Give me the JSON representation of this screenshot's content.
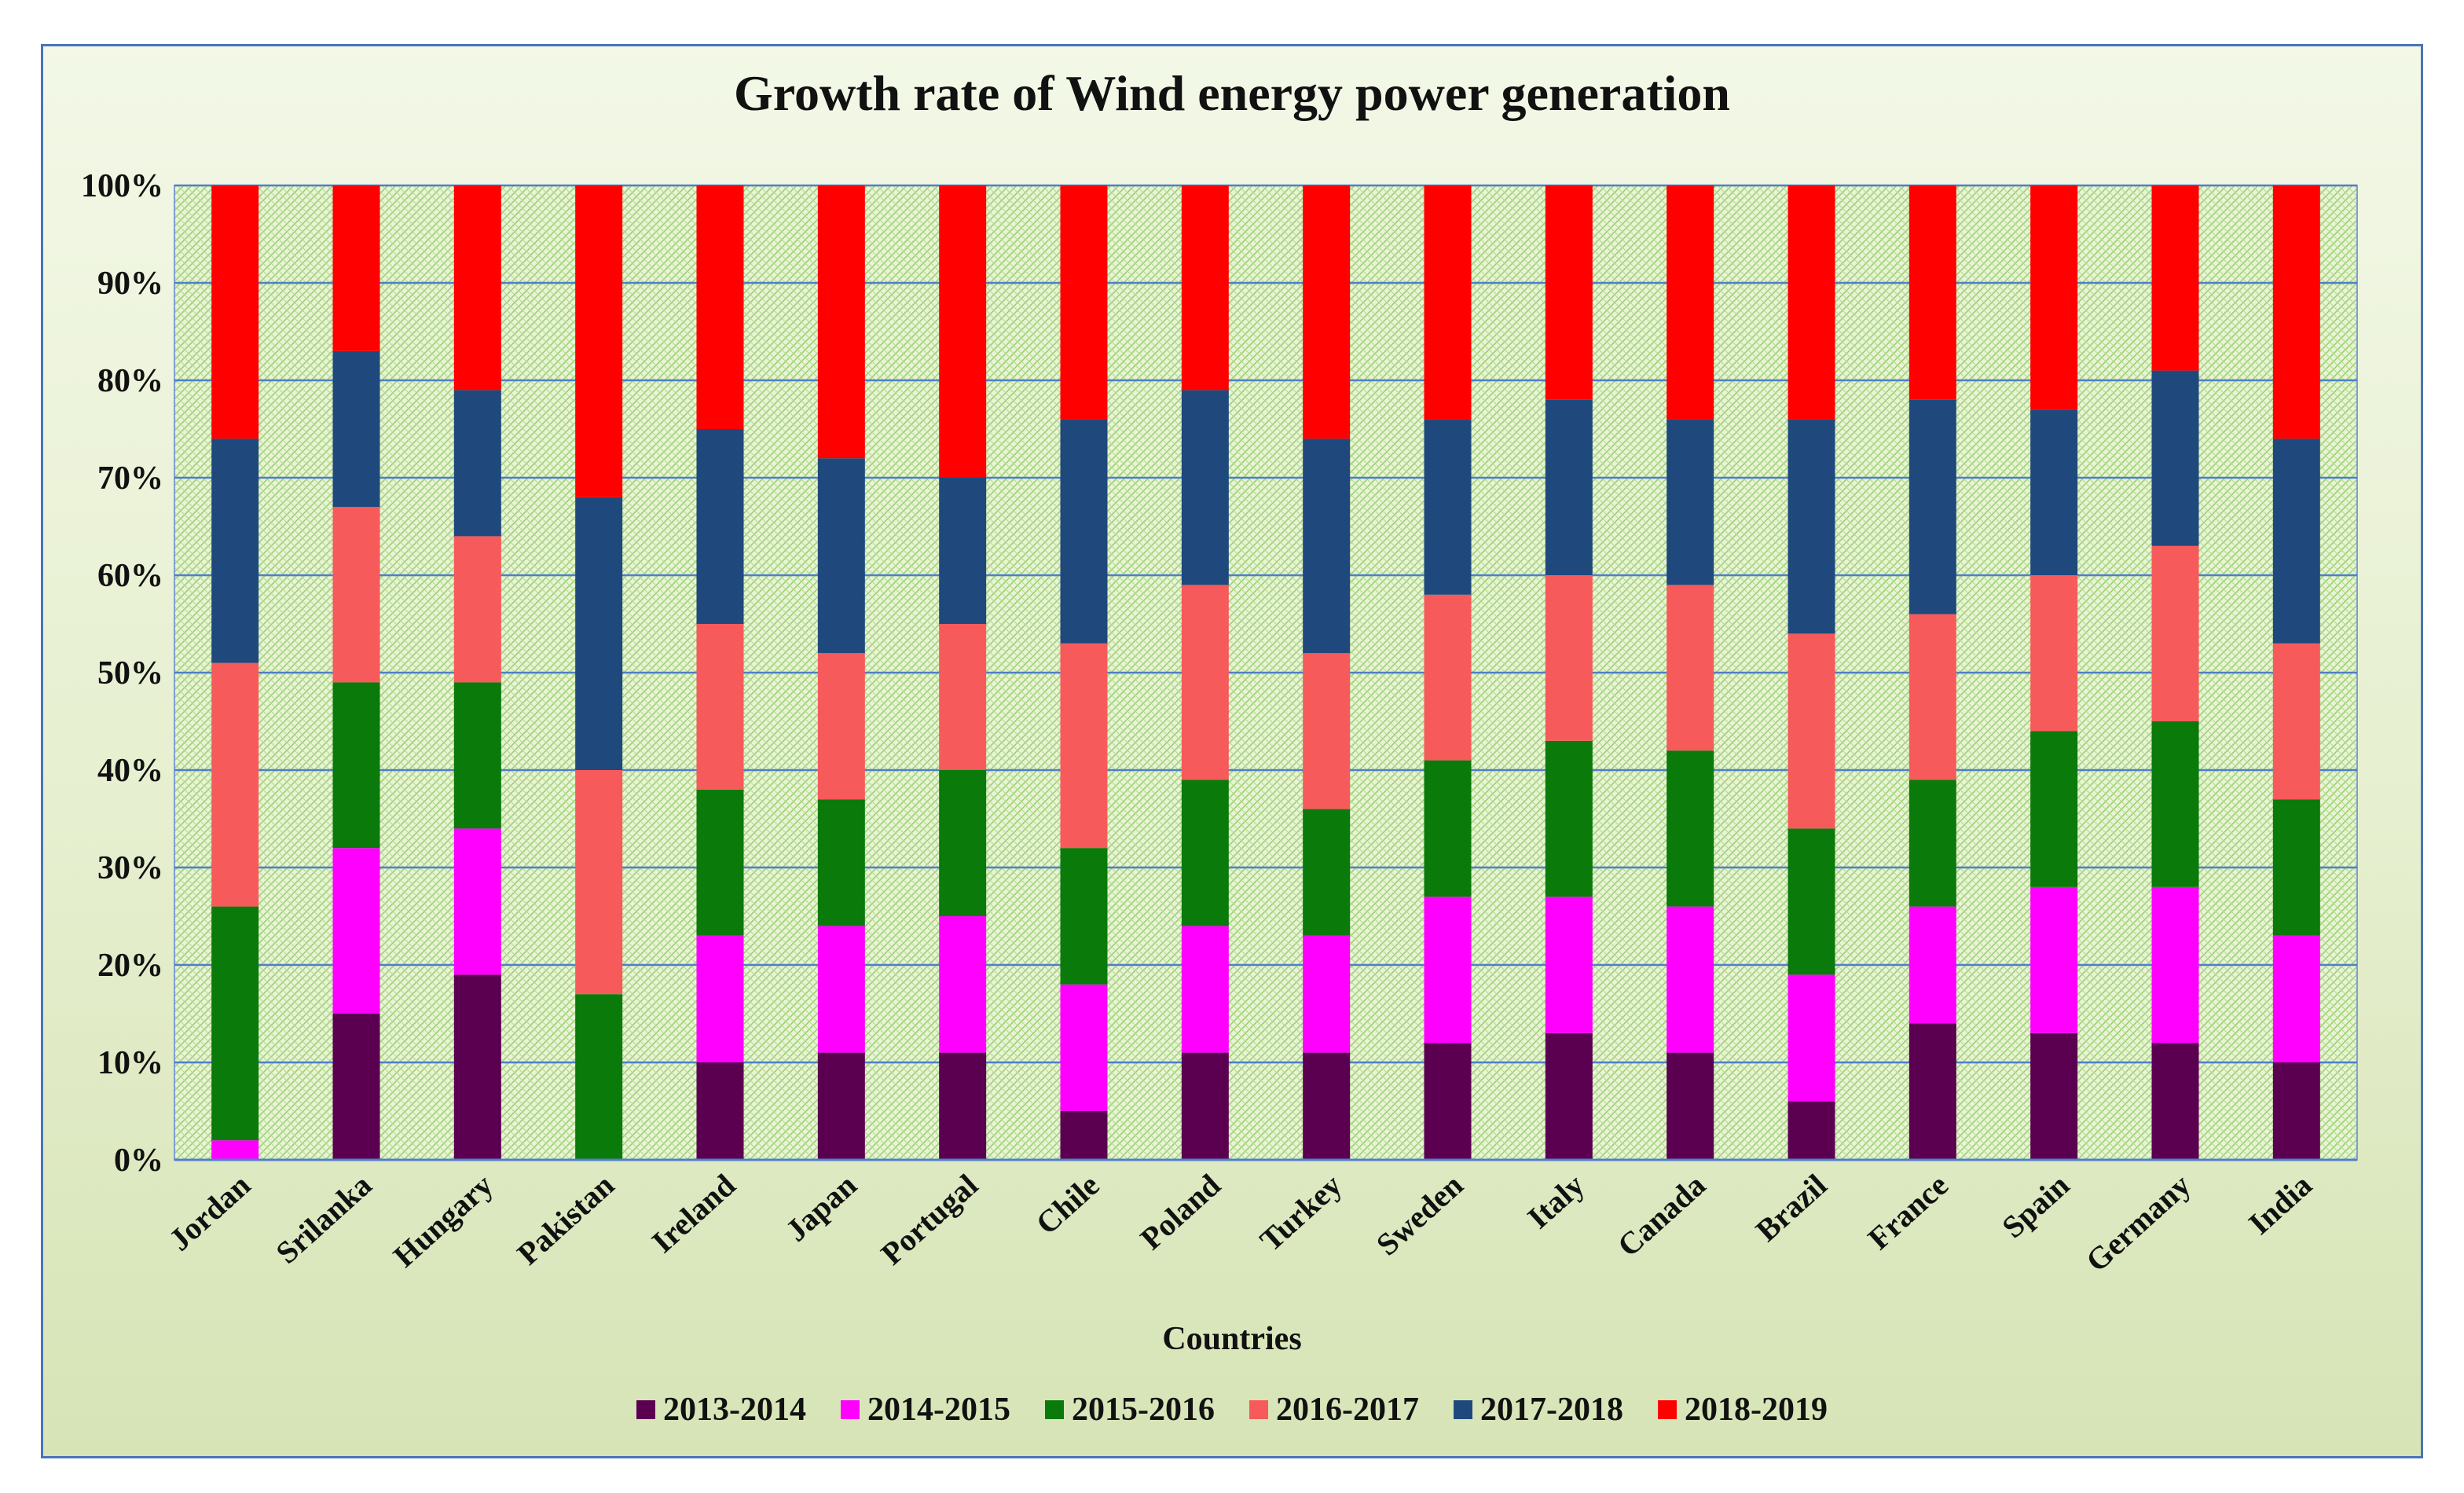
{
  "chart_data": {
    "type": "bar",
    "stacked": true,
    "percent_stacked": true,
    "title": "Growth rate of Wind energy power generation",
    "xlabel": "Countries",
    "ylabel": "",
    "ylim": [
      0,
      100
    ],
    "y_ticks": [
      "0%",
      "10%",
      "20%",
      "30%",
      "40%",
      "50%",
      "60%",
      "70%",
      "80%",
      "90%",
      "100%"
    ],
    "grid": true,
    "legend_position": "bottom",
    "categories": [
      "Jordan",
      "Srilanka",
      "Hungary",
      "Pakistan",
      "Ireland",
      "Japan",
      "Portugal",
      "Chile",
      "Poland",
      "Turkey",
      "Sweden",
      "Italy",
      "Canada",
      "Brazil",
      "France",
      "Spain",
      "Germany",
      "India"
    ],
    "series": [
      {
        "name": "2013-2014",
        "color": "#5b0051",
        "values": [
          0,
          15,
          19,
          0,
          10,
          11,
          11,
          5,
          11,
          11,
          12,
          13,
          11,
          6,
          14,
          13,
          12,
          10
        ]
      },
      {
        "name": "2014-2015",
        "color": "#ff00ff",
        "values": [
          2,
          17,
          15,
          0,
          13,
          13,
          14,
          13,
          13,
          12,
          15,
          14,
          15,
          13,
          12,
          15,
          16,
          13
        ]
      },
      {
        "name": "2015-2016",
        "color": "#0a7a0a",
        "values": [
          24,
          17,
          15,
          17,
          15,
          13,
          15,
          14,
          15,
          13,
          14,
          16,
          16,
          15,
          13,
          16,
          17,
          14
        ]
      },
      {
        "name": "2016-2017",
        "color": "#f75a5a",
        "values": [
          25,
          18,
          15,
          23,
          17,
          15,
          15,
          21,
          20,
          16,
          17,
          17,
          17,
          20,
          17,
          16,
          18,
          16
        ]
      },
      {
        "name": "2017-2018",
        "color": "#1f497d",
        "values": [
          23,
          16,
          15,
          28,
          20,
          20,
          15,
          23,
          20,
          22,
          18,
          18,
          17,
          22,
          22,
          17,
          18,
          21
        ]
      },
      {
        "name": "2018-2019",
        "color": "#ff0000",
        "values": [
          26,
          17,
          21,
          32,
          25,
          28,
          30,
          24,
          21,
          26,
          24,
          22,
          24,
          24,
          22,
          23,
          19,
          26
        ]
      }
    ]
  }
}
